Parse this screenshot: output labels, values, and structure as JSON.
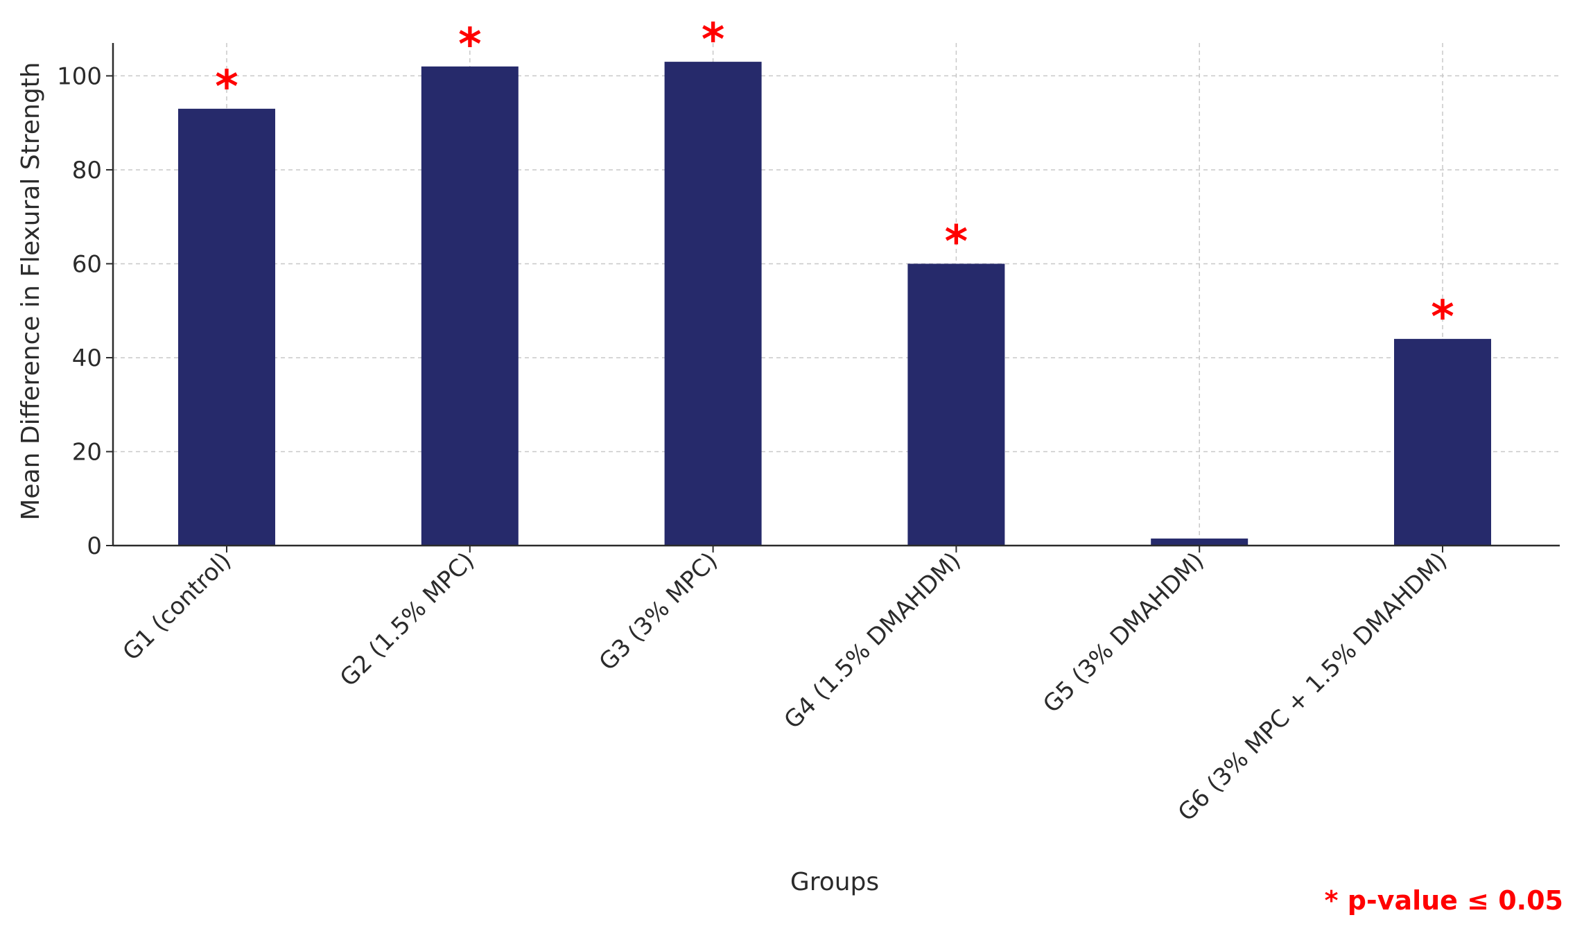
{
  "chart_data": {
    "type": "bar",
    "categories": [
      "G1 (control)",
      "G2 (1.5% MPC)",
      "G3 (3% MPC)",
      "G4 (1.5% DMAHDM)",
      "G5 (3% DMAHDM)",
      "G6 (3% MPC + 1.5% DMAHDM)"
    ],
    "values": [
      93,
      102,
      103,
      60,
      1.5,
      44
    ],
    "significant": [
      true,
      true,
      true,
      true,
      false,
      true
    ],
    "significance_marker": "*",
    "xlabel": "Groups",
    "ylabel": "Mean Difference in Flexural Strength",
    "ylim": [
      0,
      107
    ],
    "yticks": [
      0,
      20,
      40,
      60,
      80,
      100
    ],
    "grid": true,
    "bar_color": "#262a6b",
    "marker_color": "#ff0000",
    "note": "* p-value ≤ 0.05"
  }
}
